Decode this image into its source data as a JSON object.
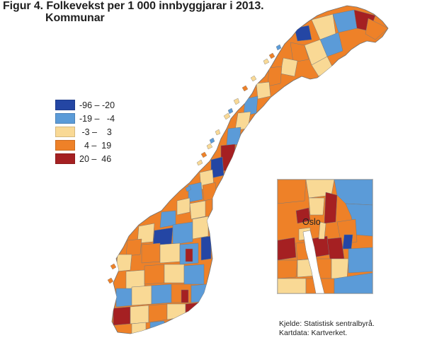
{
  "title": {
    "line1": "Figur 4. Folkevekst per 1 000 innbyggjarar i 2013.",
    "line2": "Kommunar"
  },
  "legend": [
    {
      "label": "-96 – -20",
      "color": "#2446a4"
    },
    {
      "label": "-19 –   -4",
      "color": "#5b9bd8"
    },
    {
      "label": " -3 –    3",
      "color": "#f9d995"
    },
    {
      "label": "  4 –  19",
      "color": "#ee8128"
    },
    {
      "label": "20 –  46",
      "color": "#a52022"
    }
  ],
  "inset": {
    "label": "Oslo"
  },
  "source": {
    "line1": "Kjelde: Statistisk sentralbyrå.",
    "line2": "Kartdata: Kartverket."
  }
}
